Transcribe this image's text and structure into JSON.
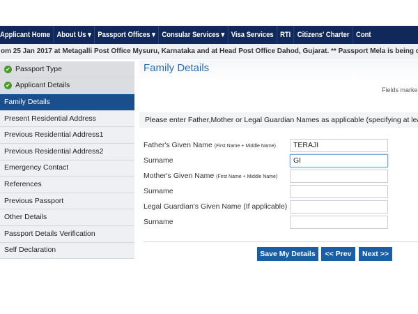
{
  "nav": [
    "Applicant Home",
    "About Us ▾",
    "Passport Offices ▾",
    "Consular Services ▾",
    "Visa Services",
    "RTI",
    "Citizens' Charter",
    "Cont"
  ],
  "ticker": "om 25 Jan 2017 at Metagalli Post Office Mysuru, Karnataka and at Head Post Office Dahod, Gujarat. ** Passport Mela is being conducted at",
  "sidebar": [
    {
      "label": "Passport Type",
      "state": "done"
    },
    {
      "label": "Applicant Details",
      "state": "done"
    },
    {
      "label": "Family Details",
      "state": "active"
    },
    {
      "label": "Present Residential Address"
    },
    {
      "label": "Previous Residential Address1"
    },
    {
      "label": "Previous Residential Address2"
    },
    {
      "label": "Emergency Contact"
    },
    {
      "label": "References"
    },
    {
      "label": "Previous Passport"
    },
    {
      "label": "Other Details"
    },
    {
      "label": "Passport Details Verification"
    },
    {
      "label": "Self Declaration"
    }
  ],
  "main": {
    "title": "Family Details",
    "fields_note": "Fields marke",
    "instruction": "Please enter Father,Mother or Legal Guardian Names as applicable (specifying at least o",
    "fields": [
      {
        "label": "Father's Given Name",
        "hint": "(First Name + Middle Name)",
        "value": "TERAJI"
      },
      {
        "label": "Surname",
        "hint": "",
        "value": "GI"
      },
      {
        "label": "Mother's Given Name",
        "hint": "(First Name + Middle Name)",
        "value": ""
      },
      {
        "label": "Surname",
        "hint": "",
        "value": ""
      },
      {
        "label": "Legal Guardian's Given Name (If applicable)",
        "hint": "",
        "value": ""
      },
      {
        "label": "Surname",
        "hint": "",
        "value": ""
      }
    ],
    "buttons": {
      "save": "Save My Details",
      "prev": "<< Prev",
      "next": "Next >>"
    }
  },
  "colors": {
    "nav": "#11295a",
    "active": "#1a4f8d",
    "button": "#1a5ea6",
    "title": "#2a6bb0",
    "check": "#4a9c2a"
  }
}
